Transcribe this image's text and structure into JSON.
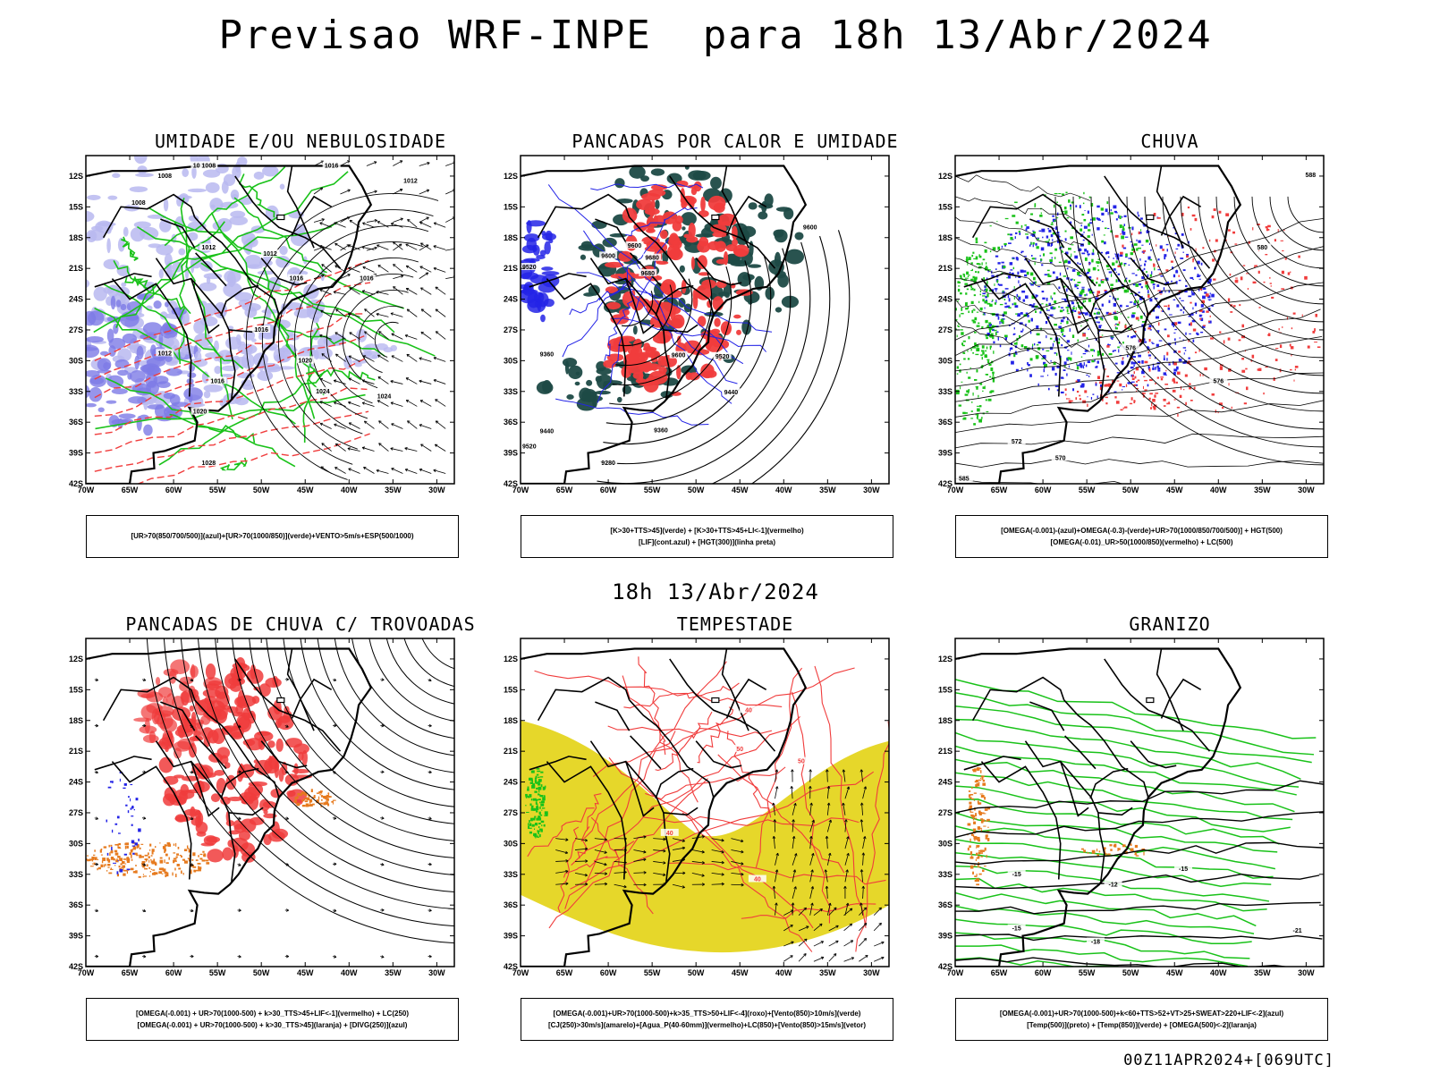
{
  "header": {
    "title": "Previsao WRF-INPE  para 18h 13/Abr/2024",
    "mid_title": "18h 13/Abr/2024",
    "footer": "00Z11APR2024+[069UTC]"
  },
  "axes": {
    "lat_labels": [
      "12S",
      "15S",
      "18S",
      "21S",
      "24S",
      "27S",
      "30S",
      "33S",
      "36S",
      "39S",
      "42S"
    ],
    "lon_labels": [
      "70W",
      "65W",
      "60W",
      "55W",
      "50W",
      "45W",
      "40W",
      "35W",
      "30W"
    ]
  },
  "colors": {
    "blue_shade": "#b9b9f0",
    "blue_shade_dark": "#7d7ae6",
    "green": "#19c219",
    "red": "#f03c3c",
    "dark_teal": "#1e4a46",
    "blue": "#2323e6",
    "orange": "#e67a1e",
    "yellow": "#e6d72a",
    "black": "#000000"
  },
  "panels": [
    {
      "title": "UMIDADE E/OU NEBULOSIDADE",
      "legend": [
        "[UR>70(850/700/500)](azul)+[UR>70(1000/850)](verde)+VENTO>5m/s+ESP(500/1000)"
      ],
      "contour_labels": [
        "1008",
        "1008",
        "1008",
        "1012",
        "1012",
        "1016",
        "1016",
        "1020",
        "1024",
        "1024",
        "1028",
        "1012",
        "1016",
        "1020",
        "1016",
        "1016",
        "1012",
        "1008"
      ]
    },
    {
      "title": "PANCADAS POR CALOR E UMIDADE",
      "legend": [
        "[K>30+TTS>45](verde) + [K>30+TTS>45+LI<-1](vermelho)",
        "[LIF](cont.azul) + [HGT(300)](linha preta)"
      ],
      "contour_labels": [
        "9600",
        "9520",
        "9600",
        "9680",
        "9680",
        "9600",
        "9520",
        "9440",
        "9360",
        "9280",
        "9520",
        "9600",
        "9360",
        "9440"
      ]
    },
    {
      "title": "CHUVA",
      "legend": [
        "[OMEGA(-0.001)-(azul)+OMEGA(-0.3)-(verde)+UR>70(1000/850/700/500)] + HGT(500)",
        "[OMEGA(-0.01)_UR>50(1000/850)(vermelho) + LC(500)"
      ],
      "contour_labels": [
        "588",
        "580",
        "576",
        "576",
        "572",
        "570",
        "585"
      ]
    },
    {
      "title": "PANCADAS DE CHUVA C/ TROVOADAS",
      "legend": [
        "[OMEGA(-0.001) + UR>70(1000-500) + k>30_TTS>45+LIF<-1](vermelho) + LC(250)",
        "[OMEGA(-0.001) + UR>70(1000-500) + k>30_TTS>45](laranja) + [DIVG(250)](azul)"
      ],
      "contour_labels": []
    },
    {
      "title": "TEMPESTADE",
      "legend": [
        "[OMEGA(-0.001)+UR>70(1000-500)+k>35_TTS>50+LIF<-4](roxo)+[Vento(850)>10m/s](verde)",
        "[CJ(250)>30m/s](amarelo)+[Agua_P(40-60mm)](vermelho)+LC(850)+[Vento(850)>15m/s](vetor)"
      ],
      "contour_labels": [
        "40",
        "40",
        "50",
        "40",
        "50"
      ]
    },
    {
      "title": "GRANIZO",
      "legend": [
        "[OMEGA(-0.001)+UR>70(1000-500)+k<60+TTS>52+VT>25+SWEAT>220+LIF<-2](azul)",
        "[Temp(500)](preto) + [Temp(850)](verde) + [OMEGA(500)<-2](laranja)"
      ],
      "contour_labels": [
        "-15",
        "-12",
        "-15",
        "-18",
        "-21",
        "-15"
      ]
    }
  ]
}
